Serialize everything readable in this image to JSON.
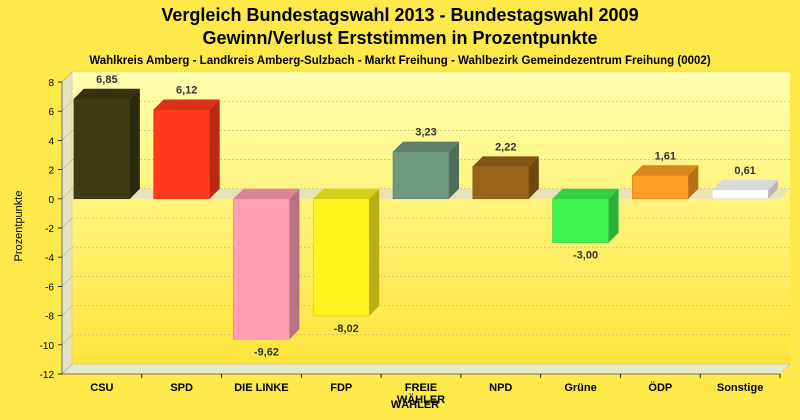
{
  "chart_data": {
    "type": "bar",
    "title": "Vergleich Bundestagswahl 2013 - Bundestagswahl 2009",
    "title2": "Gewinn/Verlust Erststimmen in Prozentpunkte",
    "subtitle": "Wahlkreis Amberg - Landkreis Amberg-Sulzbach - Markt Freihung - Wahlbezirk Gemeindezentrum Freihung (0002)",
    "xlabel": "WÄHLER",
    "ylabel": "Prozentpunkte",
    "ylim": [
      -12,
      8
    ],
    "yticks": [
      -12,
      -10,
      -8,
      -6,
      -4,
      -2,
      0,
      2,
      4,
      6,
      8
    ],
    "grid": true,
    "categories": [
      "CSU",
      "SPD",
      "DIE LINKE",
      "FDP",
      "FREIE WÄHLER",
      "NPD",
      "Grüne",
      "ÖDP",
      "Sonstige"
    ],
    "category_labels": [
      [
        "CSU"
      ],
      [
        "SPD"
      ],
      [
        "DIE LINKE"
      ],
      [
        "FDP"
      ],
      [
        "FREIE",
        "WÄHLER"
      ],
      [
        "NPD"
      ],
      [
        "Grüne"
      ],
      [
        "ÖDP"
      ],
      [
        "Sonstige"
      ]
    ],
    "values": [
      6.85,
      6.12,
      -9.62,
      -8.02,
      3.23,
      2.22,
      -3.0,
      1.61,
      0.61
    ],
    "value_labels": [
      "6,85",
      "6,12",
      "-9,62",
      "-8,02",
      "3,23",
      "2,22",
      "-3,00",
      "1,61",
      "0,61"
    ],
    "colors": [
      "#3D3A14",
      "#FF3A1C",
      "#FF9EB4",
      "#FFF21E",
      "#6E9680",
      "#9A6418",
      "#3CF550",
      "#FF9C22",
      "#FFFFFF"
    ]
  }
}
